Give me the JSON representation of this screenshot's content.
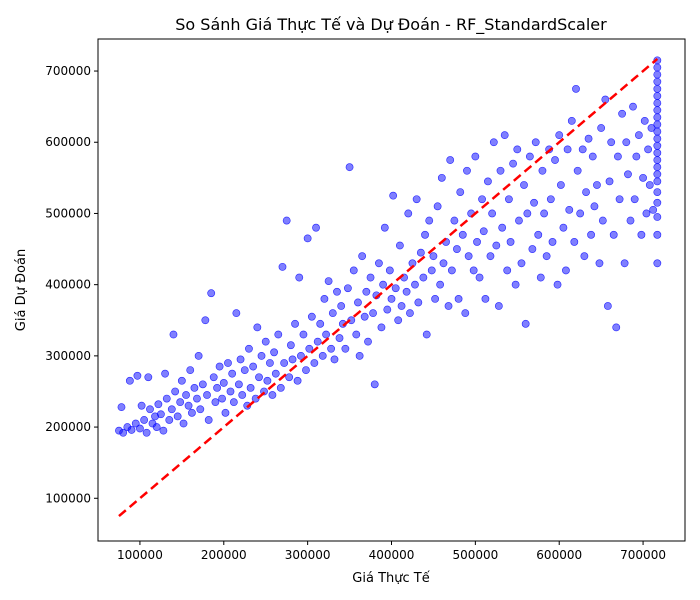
{
  "chart_data": {
    "type": "scatter",
    "title": "So Sánh Giá Thực Tế và Dự Đoán - RF_StandardScaler",
    "xlabel": "Giá Thực Tế",
    "ylabel": "Giá Dự Đoán",
    "xlim": [
      50000,
      750000
    ],
    "ylim": [
      40000,
      745000
    ],
    "xticks": [
      100000,
      200000,
      300000,
      400000,
      500000,
      600000,
      700000
    ],
    "yticks": [
      100000,
      200000,
      300000,
      400000,
      500000,
      600000,
      700000
    ],
    "xtick_labels": [
      "100000",
      "200000",
      "300000",
      "400000",
      "500000",
      "600000",
      "700000"
    ],
    "ytick_labels": [
      "100000",
      "200000",
      "300000",
      "400000",
      "500000",
      "600000",
      "700000"
    ],
    "grid": false,
    "series": [
      {
        "marker_color": "#0000ff",
        "marker_alpha": 0.5,
        "points": [
          [
            75000,
            195000
          ],
          [
            78000,
            228000
          ],
          [
            80000,
            192000
          ],
          [
            85000,
            200000
          ],
          [
            88000,
            265000
          ],
          [
            90000,
            196000
          ],
          [
            95000,
            205000
          ],
          [
            97000,
            272000
          ],
          [
            100000,
            198000
          ],
          [
            102000,
            230000
          ],
          [
            105000,
            210000
          ],
          [
            108000,
            192000
          ],
          [
            110000,
            270000
          ],
          [
            112000,
            225000
          ],
          [
            115000,
            205000
          ],
          [
            118000,
            215000
          ],
          [
            120000,
            200000
          ],
          [
            122000,
            232000
          ],
          [
            125000,
            218000
          ],
          [
            128000,
            195000
          ],
          [
            130000,
            275000
          ],
          [
            132000,
            240000
          ],
          [
            135000,
            210000
          ],
          [
            138000,
            225000
          ],
          [
            140000,
            330000
          ],
          [
            142000,
            250000
          ],
          [
            145000,
            215000
          ],
          [
            148000,
            235000
          ],
          [
            150000,
            265000
          ],
          [
            152000,
            205000
          ],
          [
            155000,
            245000
          ],
          [
            158000,
            230000
          ],
          [
            160000,
            280000
          ],
          [
            162000,
            220000
          ],
          [
            165000,
            255000
          ],
          [
            168000,
            240000
          ],
          [
            170000,
            300000
          ],
          [
            172000,
            225000
          ],
          [
            175000,
            260000
          ],
          [
            178000,
            350000
          ],
          [
            180000,
            245000
          ],
          [
            182000,
            210000
          ],
          [
            185000,
            388000
          ],
          [
            188000,
            270000
          ],
          [
            190000,
            235000
          ],
          [
            192000,
            255000
          ],
          [
            195000,
            285000
          ],
          [
            198000,
            240000
          ],
          [
            200000,
            262000
          ],
          [
            202000,
            220000
          ],
          [
            205000,
            290000
          ],
          [
            208000,
            250000
          ],
          [
            210000,
            275000
          ],
          [
            212000,
            235000
          ],
          [
            215000,
            360000
          ],
          [
            218000,
            260000
          ],
          [
            220000,
            295000
          ],
          [
            222000,
            245000
          ],
          [
            225000,
            280000
          ],
          [
            228000,
            230000
          ],
          [
            230000,
            310000
          ],
          [
            232000,
            255000
          ],
          [
            235000,
            285000
          ],
          [
            238000,
            240000
          ],
          [
            240000,
            340000
          ],
          [
            242000,
            270000
          ],
          [
            245000,
            300000
          ],
          [
            248000,
            250000
          ],
          [
            250000,
            320000
          ],
          [
            252000,
            265000
          ],
          [
            255000,
            290000
          ],
          [
            258000,
            245000
          ],
          [
            260000,
            305000
          ],
          [
            262000,
            275000
          ],
          [
            265000,
            330000
          ],
          [
            268000,
            255000
          ],
          [
            270000,
            425000
          ],
          [
            272000,
            290000
          ],
          [
            275000,
            490000
          ],
          [
            278000,
            270000
          ],
          [
            280000,
            315000
          ],
          [
            282000,
            295000
          ],
          [
            285000,
            345000
          ],
          [
            288000,
            265000
          ],
          [
            290000,
            410000
          ],
          [
            292000,
            300000
          ],
          [
            295000,
            330000
          ],
          [
            298000,
            280000
          ],
          [
            300000,
            465000
          ],
          [
            302000,
            310000
          ],
          [
            305000,
            355000
          ],
          [
            308000,
            290000
          ],
          [
            310000,
            480000
          ],
          [
            312000,
            320000
          ],
          [
            315000,
            345000
          ],
          [
            318000,
            300000
          ],
          [
            320000,
            380000
          ],
          [
            322000,
            330000
          ],
          [
            325000,
            405000
          ],
          [
            328000,
            310000
          ],
          [
            330000,
            360000
          ],
          [
            332000,
            295000
          ],
          [
            335000,
            390000
          ],
          [
            338000,
            325000
          ],
          [
            340000,
            370000
          ],
          [
            342000,
            345000
          ],
          [
            345000,
            310000
          ],
          [
            348000,
            395000
          ],
          [
            350000,
            565000
          ],
          [
            352000,
            350000
          ],
          [
            355000,
            420000
          ],
          [
            358000,
            330000
          ],
          [
            360000,
            375000
          ],
          [
            362000,
            300000
          ],
          [
            365000,
            440000
          ],
          [
            368000,
            355000
          ],
          [
            370000,
            390000
          ],
          [
            372000,
            320000
          ],
          [
            375000,
            410000
          ],
          [
            378000,
            360000
          ],
          [
            380000,
            260000
          ],
          [
            382000,
            385000
          ],
          [
            385000,
            430000
          ],
          [
            388000,
            340000
          ],
          [
            390000,
            400000
          ],
          [
            392000,
            480000
          ],
          [
            395000,
            365000
          ],
          [
            398000,
            420000
          ],
          [
            400000,
            380000
          ],
          [
            402000,
            525000
          ],
          [
            405000,
            395000
          ],
          [
            408000,
            350000
          ],
          [
            410000,
            455000
          ],
          [
            412000,
            370000
          ],
          [
            415000,
            410000
          ],
          [
            418000,
            390000
          ],
          [
            420000,
            500000
          ],
          [
            422000,
            360000
          ],
          [
            425000,
            430000
          ],
          [
            428000,
            400000
          ],
          [
            430000,
            520000
          ],
          [
            432000,
            375000
          ],
          [
            435000,
            445000
          ],
          [
            438000,
            410000
          ],
          [
            440000,
            470000
          ],
          [
            442000,
            330000
          ],
          [
            445000,
            490000
          ],
          [
            448000,
            420000
          ],
          [
            450000,
            440000
          ],
          [
            452000,
            380000
          ],
          [
            455000,
            510000
          ],
          [
            458000,
            400000
          ],
          [
            460000,
            550000
          ],
          [
            462000,
            430000
          ],
          [
            465000,
            460000
          ],
          [
            468000,
            370000
          ],
          [
            470000,
            575000
          ],
          [
            472000,
            420000
          ],
          [
            475000,
            490000
          ],
          [
            478000,
            450000
          ],
          [
            480000,
            380000
          ],
          [
            482000,
            530000
          ],
          [
            485000,
            470000
          ],
          [
            488000,
            360000
          ],
          [
            490000,
            560000
          ],
          [
            492000,
            440000
          ],
          [
            495000,
            500000
          ],
          [
            498000,
            420000
          ],
          [
            500000,
            580000
          ],
          [
            502000,
            460000
          ],
          [
            505000,
            410000
          ],
          [
            508000,
            520000
          ],
          [
            510000,
            475000
          ],
          [
            512000,
            380000
          ],
          [
            515000,
            545000
          ],
          [
            518000,
            440000
          ],
          [
            520000,
            500000
          ],
          [
            522000,
            600000
          ],
          [
            525000,
            455000
          ],
          [
            528000,
            370000
          ],
          [
            530000,
            560000
          ],
          [
            532000,
            480000
          ],
          [
            535000,
            610000
          ],
          [
            538000,
            420000
          ],
          [
            540000,
            520000
          ],
          [
            542000,
            460000
          ],
          [
            545000,
            570000
          ],
          [
            548000,
            400000
          ],
          [
            550000,
            590000
          ],
          [
            552000,
            490000
          ],
          [
            555000,
            430000
          ],
          [
            558000,
            540000
          ],
          [
            560000,
            345000
          ],
          [
            562000,
            500000
          ],
          [
            565000,
            580000
          ],
          [
            568000,
            450000
          ],
          [
            570000,
            515000
          ],
          [
            572000,
            600000
          ],
          [
            575000,
            470000
          ],
          [
            578000,
            410000
          ],
          [
            580000,
            560000
          ],
          [
            582000,
            500000
          ],
          [
            585000,
            440000
          ],
          [
            588000,
            590000
          ],
          [
            590000,
            520000
          ],
          [
            592000,
            460000
          ],
          [
            595000,
            575000
          ],
          [
            598000,
            400000
          ],
          [
            600000,
            610000
          ],
          [
            602000,
            540000
          ],
          [
            605000,
            480000
          ],
          [
            608000,
            420000
          ],
          [
            610000,
            590000
          ],
          [
            612000,
            505000
          ],
          [
            615000,
            630000
          ],
          [
            618000,
            460000
          ],
          [
            620000,
            675000
          ],
          [
            622000,
            560000
          ],
          [
            625000,
            500000
          ],
          [
            628000,
            590000
          ],
          [
            630000,
            440000
          ],
          [
            632000,
            530000
          ],
          [
            635000,
            605000
          ],
          [
            638000,
            470000
          ],
          [
            640000,
            580000
          ],
          [
            642000,
            510000
          ],
          [
            645000,
            540000
          ],
          [
            648000,
            430000
          ],
          [
            650000,
            620000
          ],
          [
            652000,
            490000
          ],
          [
            655000,
            660000
          ],
          [
            658000,
            370000
          ],
          [
            660000,
            545000
          ],
          [
            662000,
            600000
          ],
          [
            665000,
            470000
          ],
          [
            668000,
            340000
          ],
          [
            670000,
            580000
          ],
          [
            672000,
            520000
          ],
          [
            675000,
            640000
          ],
          [
            678000,
            430000
          ],
          [
            680000,
            600000
          ],
          [
            682000,
            555000
          ],
          [
            685000,
            490000
          ],
          [
            688000,
            650000
          ],
          [
            690000,
            520000
          ],
          [
            692000,
            580000
          ],
          [
            695000,
            610000
          ],
          [
            698000,
            470000
          ],
          [
            700000,
            550000
          ],
          [
            702000,
            630000
          ],
          [
            704000,
            500000
          ],
          [
            706000,
            590000
          ],
          [
            708000,
            540000
          ],
          [
            710000,
            620000
          ],
          [
            712000,
            505000
          ],
          [
            717000,
            430000
          ],
          [
            717000,
            470000
          ],
          [
            717000,
            495000
          ],
          [
            717000,
            515000
          ],
          [
            717000,
            530000
          ],
          [
            717000,
            545000
          ],
          [
            717000,
            555000
          ],
          [
            717000,
            565000
          ],
          [
            717000,
            575000
          ],
          [
            717000,
            585000
          ],
          [
            717000,
            595000
          ],
          [
            717000,
            605000
          ],
          [
            717000,
            615000
          ],
          [
            717000,
            625000
          ],
          [
            717000,
            635000
          ],
          [
            717000,
            645000
          ],
          [
            717000,
            655000
          ],
          [
            717000,
            665000
          ],
          [
            717000,
            675000
          ],
          [
            717000,
            685000
          ],
          [
            717000,
            695000
          ],
          [
            717000,
            705000
          ],
          [
            717000,
            715000
          ]
        ]
      },
      {
        "line_color": "#ff0000",
        "line_style": "dashed",
        "points": [
          [
            75000,
            75000
          ],
          [
            717000,
            717000
          ]
        ]
      }
    ]
  }
}
